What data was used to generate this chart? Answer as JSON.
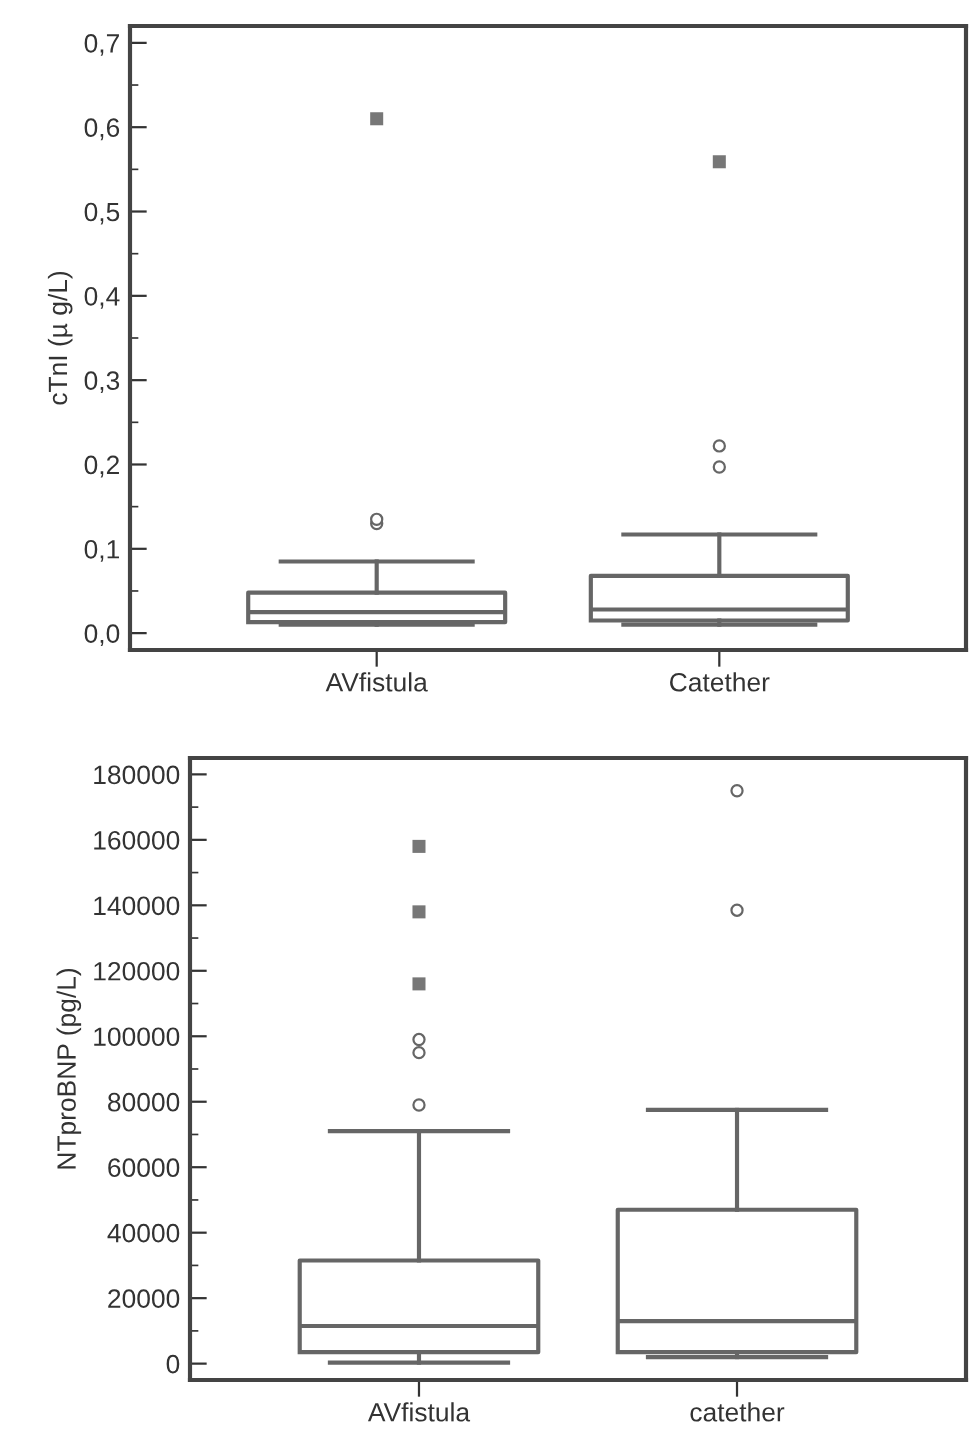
{
  "chart_data": [
    {
      "type": "box",
      "ylabel": "cTnI (µ g/L)",
      "categories": [
        "AVfistula",
        "Catether"
      ],
      "color": "#666666",
      "boxes": [
        {
          "low": 0.01,
          "q1": 0.013,
          "median": 0.025,
          "q3": 0.048,
          "high": 0.085,
          "outliers": [
            0.13,
            0.135
          ]
        },
        {
          "low": 0.01,
          "q1": 0.015,
          "median": 0.028,
          "q3": 0.068,
          "high": 0.117,
          "outliers": [
            0.197,
            0.222
          ]
        }
      ],
      "series": [
        {
          "type": "scatter",
          "marker": "square",
          "color": "#777777",
          "x": [
            "AVfistula",
            "Catether"
          ],
          "values": [
            0.61,
            0.559
          ]
        }
      ],
      "ylim": [
        -0.02,
        0.72
      ],
      "yticks": [
        {
          "value": 0,
          "label": "0,0"
        },
        {
          "value": 0.1,
          "label": "0,1"
        },
        {
          "value": 0.2,
          "label": "0,2"
        },
        {
          "value": 0.3,
          "label": "0,3"
        },
        {
          "value": 0.4,
          "label": "0,4"
        },
        {
          "value": 0.5,
          "label": "0,5"
        },
        {
          "value": 0.6,
          "label": "0,6"
        },
        {
          "value": 0.7,
          "label": "0,7"
        }
      ],
      "grid": false,
      "legend": false
    },
    {
      "type": "box",
      "ylabel": "NTproBNP (pg/L)",
      "categories": [
        "AVfistula",
        "catether"
      ],
      "color": "#666666",
      "boxes": [
        {
          "low": 300,
          "q1": 3500,
          "median": 11500,
          "q3": 31500,
          "high": 71000,
          "outliers": [
            79000,
            95000,
            99000
          ]
        },
        {
          "low": 2000,
          "q1": 3500,
          "median": 13000,
          "q3": 47000,
          "high": 77500,
          "outliers": [
            138500,
            175000
          ]
        }
      ],
      "series": [
        {
          "type": "scatter",
          "marker": "square",
          "color": "#777777",
          "x": [
            "AVfistula",
            "AVfistula",
            "AVfistula"
          ],
          "values": [
            116000,
            138000,
            158000
          ]
        }
      ],
      "ylim": [
        -5000,
        185000
      ],
      "yticks": [
        0,
        20000,
        40000,
        60000,
        80000,
        100000,
        120000,
        140000,
        160000,
        180000
      ],
      "grid": false,
      "legend": false
    }
  ]
}
